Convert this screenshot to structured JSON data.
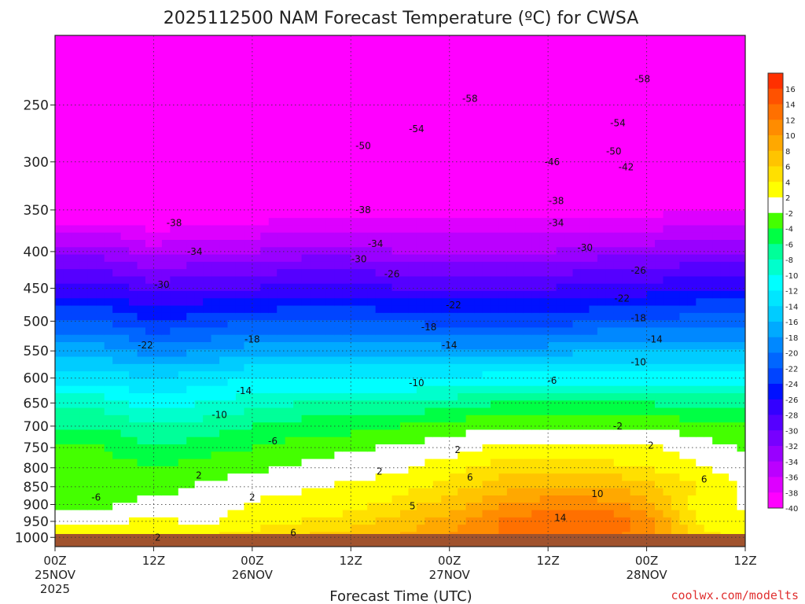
{
  "chart_data": {
    "type": "heatmap",
    "title": "2025112500 NAM Forecast Temperature (ºC) for CWSA",
    "xlabel": "Forecast Time (UTC)",
    "credit": "coolwx.com/modelts",
    "credit_color": "#e03030",
    "ground_color": "#a0522d",
    "y_axis": {
      "scale": "log-pressure",
      "range": [
        1030,
        200
      ],
      "ticks": [
        250,
        300,
        350,
        400,
        450,
        500,
        550,
        600,
        650,
        700,
        750,
        800,
        850,
        900,
        950,
        1000
      ]
    },
    "x_axis": {
      "range_hours": [
        0,
        84
      ],
      "ticks": [
        {
          "hour": 0,
          "time": "00Z",
          "date": "25NOV",
          "year": "2025"
        },
        {
          "hour": 12,
          "time": "12Z",
          "date": "",
          "year": ""
        },
        {
          "hour": 24,
          "time": "00Z",
          "date": "26NOV",
          "year": ""
        },
        {
          "hour": 36,
          "time": "12Z",
          "date": "",
          "year": ""
        },
        {
          "hour": 48,
          "time": "00Z",
          "date": "27NOV",
          "year": ""
        },
        {
          "hour": 60,
          "time": "12Z",
          "date": "",
          "year": ""
        },
        {
          "hour": 72,
          "time": "00Z",
          "date": "28NOV",
          "year": ""
        },
        {
          "hour": 84,
          "time": "12Z",
          "date": "",
          "year": ""
        }
      ]
    },
    "colorbar": {
      "labels": [
        "16",
        "14",
        "12",
        "10",
        "8",
        "6",
        "4",
        "2",
        "-2",
        "-4",
        "-6",
        "-8",
        "-10",
        "-12",
        "-14",
        "-16",
        "-18",
        "-20",
        "-22",
        "-24",
        "-26",
        "-28",
        "-30",
        "-32",
        "-34",
        "-36",
        "-38",
        "-40"
      ],
      "colors": [
        "#ff3000",
        "#ff5200",
        "#ff7000",
        "#ff8c00",
        "#ffa800",
        "#ffc400",
        "#ffe000",
        "#ffff00",
        "#ffffff",
        "#44ff00",
        "#00ff44",
        "#00ff99",
        "#00ffcc",
        "#00ffff",
        "#00e6ff",
        "#00ccff",
        "#00aaff",
        "#0088ff",
        "#0066ff",
        "#0044ff",
        "#0011ff",
        "#3300ff",
        "#5500ff",
        "#7700ff",
        "#9900ff",
        "#bb00ff",
        "#dd00ff",
        "#ff00ff"
      ]
    },
    "temperature_profiles": {
      "pressure_levels": [
        200,
        250,
        300,
        350,
        400,
        450,
        500,
        550,
        600,
        650,
        700,
        750,
        800,
        850,
        900,
        950,
        1000,
        1030
      ],
      "columns": [
        {
          "hour": 0,
          "temps": [
            -60,
            -55,
            -47,
            -40,
            -33,
            -27,
            -22,
            -17,
            -13,
            -9,
            -6,
            -4,
            -3,
            -4,
            -2,
            1,
            3,
            4
          ]
        },
        {
          "hour": 6,
          "temps": [
            -60,
            -55,
            -47,
            -40,
            -33,
            -27,
            -22,
            -17,
            -13,
            -9,
            -6,
            -4,
            -3,
            -4,
            -2,
            1,
            4,
            5
          ]
        },
        {
          "hour": 12,
          "temps": [
            -61,
            -56,
            -48,
            -41,
            -35,
            -29,
            -24,
            -19,
            -14,
            -11,
            -8,
            -6,
            -4,
            -3,
            0,
            2,
            4,
            5
          ]
        },
        {
          "hour": 18,
          "temps": [
            -61,
            -56,
            -48,
            -40,
            -34,
            -28,
            -23,
            -18,
            -13,
            -10,
            -7,
            -5,
            -3,
            -1,
            -1,
            1,
            4,
            5
          ]
        },
        {
          "hour": 24,
          "temps": [
            -61,
            -56,
            -48,
            -40,
            -34,
            -28,
            -22,
            -17,
            -12,
            -9,
            -6,
            -4,
            -2,
            0,
            2,
            3,
            5,
            6
          ]
        },
        {
          "hour": 30,
          "temps": [
            -60,
            -55,
            -47,
            -39,
            -33,
            -27,
            -22,
            -17,
            -12,
            -8,
            -5,
            -3,
            -1,
            1,
            3,
            4,
            6,
            7
          ]
        },
        {
          "hour": 36,
          "temps": [
            -59,
            -54,
            -47,
            -39,
            -33,
            -27,
            -22,
            -17,
            -12,
            -8,
            -5,
            -2,
            0,
            2,
            3,
            5,
            7,
            8
          ]
        },
        {
          "hour": 42,
          "temps": [
            -58,
            -53,
            -46,
            -39,
            -34,
            -28,
            -22,
            -17,
            -12,
            -8,
            -4,
            -1,
            1,
            3,
            5,
            7,
            8,
            9
          ]
        },
        {
          "hour": 48,
          "temps": [
            -58,
            -53,
            -46,
            -39,
            -34,
            -28,
            -23,
            -17,
            -12,
            -7,
            -3,
            0,
            3,
            5,
            7,
            9,
            10,
            10
          ]
        },
        {
          "hour": 54,
          "temps": [
            -58,
            -53,
            -46,
            -39,
            -34,
            -28,
            -23,
            -17,
            -11,
            -6,
            -2,
            2,
            5,
            7,
            10,
            12,
            12,
            12
          ]
        },
        {
          "hour": 60,
          "temps": [
            -58,
            -53,
            -46,
            -39,
            -34,
            -28,
            -23,
            -17,
            -11,
            -6,
            -2,
            2,
            5,
            8,
            11,
            14,
            13,
            12
          ]
        },
        {
          "hour": 66,
          "temps": [
            -59,
            -54,
            -46,
            -39,
            -33,
            -27,
            -22,
            -16,
            -11,
            -6,
            -2,
            2,
            5,
            8,
            11,
            14,
            13,
            12
          ]
        },
        {
          "hour": 72,
          "temps": [
            -59,
            -54,
            -46,
            -39,
            -33,
            -27,
            -22,
            -16,
            -11,
            -6,
            -2,
            2,
            4,
            7,
            9,
            11,
            11,
            10
          ]
        },
        {
          "hour": 78,
          "temps": [
            -59,
            -53,
            -45,
            -38,
            -32,
            -26,
            -21,
            -16,
            -11,
            -7,
            -3,
            0,
            2,
            4,
            3,
            4,
            5,
            6
          ]
        },
        {
          "hour": 84,
          "temps": [
            -59,
            -53,
            -45,
            -38,
            -32,
            -26,
            -21,
            -16,
            -11,
            -7,
            -4,
            -2,
            0,
            1,
            1,
            2,
            3,
            4
          ]
        }
      ]
    },
    "contour_labels": [
      {
        "hour": 12.5,
        "p": 1000,
        "text": "2"
      },
      {
        "hour": 29,
        "p": 985,
        "text": "6"
      },
      {
        "hour": 5,
        "p": 880,
        "text": "-6"
      },
      {
        "hour": 17.5,
        "p": 820,
        "text": "2"
      },
      {
        "hour": 24,
        "p": 880,
        "text": "2"
      },
      {
        "hour": 26.5,
        "p": 735,
        "text": "-6"
      },
      {
        "hour": 20,
        "p": 675,
        "text": "-10"
      },
      {
        "hour": 23,
        "p": 625,
        "text": "-14"
      },
      {
        "hour": 24,
        "p": 530,
        "text": "-18"
      },
      {
        "hour": 11,
        "p": 540,
        "text": "-22"
      },
      {
        "hour": 13,
        "p": 445,
        "text": "-30"
      },
      {
        "hour": 17,
        "p": 400,
        "text": "-34"
      },
      {
        "hour": 14.5,
        "p": 365,
        "text": "-38"
      },
      {
        "hour": 37.5,
        "p": 350,
        "text": "-38"
      },
      {
        "hour": 39,
        "p": 390,
        "text": "-34"
      },
      {
        "hour": 37,
        "p": 410,
        "text": "-30"
      },
      {
        "hour": 41,
        "p": 430,
        "text": "-26"
      },
      {
        "hour": 48.5,
        "p": 475,
        "text": "-22"
      },
      {
        "hour": 45.5,
        "p": 510,
        "text": "-18"
      },
      {
        "hour": 48,
        "p": 540,
        "text": "-14"
      },
      {
        "hour": 44,
        "p": 610,
        "text": "-10"
      },
      {
        "hour": 39.5,
        "p": 810,
        "text": "2"
      },
      {
        "hour": 49,
        "p": 755,
        "text": "2"
      },
      {
        "hour": 50.5,
        "p": 825,
        "text": "6"
      },
      {
        "hour": 43.5,
        "p": 905,
        "text": "5"
      },
      {
        "hour": 37.5,
        "p": 285,
        "text": "-50"
      },
      {
        "hour": 44,
        "p": 270,
        "text": "-54"
      },
      {
        "hour": 50.5,
        "p": 245,
        "text": "-58"
      },
      {
        "hour": 60.5,
        "p": 300,
        "text": "-46"
      },
      {
        "hour": 61,
        "p": 340,
        "text": "-38"
      },
      {
        "hour": 61,
        "p": 365,
        "text": "-34"
      },
      {
        "hour": 64.5,
        "p": 395,
        "text": "-30"
      },
      {
        "hour": 71,
        "p": 425,
        "text": "-26"
      },
      {
        "hour": 69,
        "p": 465,
        "text": "-22"
      },
      {
        "hour": 71,
        "p": 495,
        "text": "-18"
      },
      {
        "hour": 73,
        "p": 530,
        "text": "-14"
      },
      {
        "hour": 71,
        "p": 570,
        "text": "-10"
      },
      {
        "hour": 60.5,
        "p": 605,
        "text": "-6"
      },
      {
        "hour": 68.5,
        "p": 700,
        "text": "-2"
      },
      {
        "hour": 72.5,
        "p": 745,
        "text": "2"
      },
      {
        "hour": 79,
        "p": 830,
        "text": "6"
      },
      {
        "hour": 66,
        "p": 870,
        "text": "10"
      },
      {
        "hour": 61.5,
        "p": 940,
        "text": "14"
      },
      {
        "hour": 68,
        "p": 290,
        "text": "-50"
      },
      {
        "hour": 68.5,
        "p": 265,
        "text": "-54"
      },
      {
        "hour": 71.5,
        "p": 230,
        "text": "-58"
      },
      {
        "hour": 69.5,
        "p": 305,
        "text": "-42"
      }
    ]
  }
}
